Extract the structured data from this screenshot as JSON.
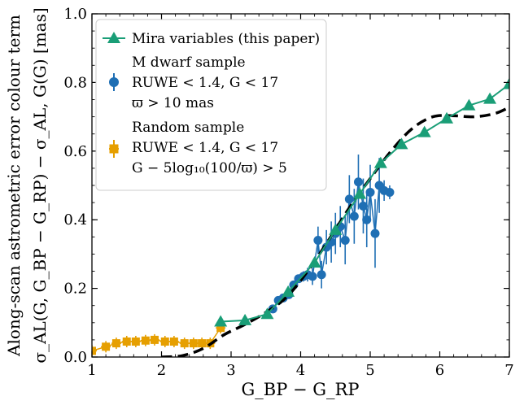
{
  "chart_data": {
    "type": "scatter",
    "xlabel": "G_BP − G_RP",
    "ylabel_line1": "Along-scan astrometric error colour term",
    "ylabel_line2": "σ_AL(G, G_BP − G_RP) − σ_AL, G(G) [mas]",
    "xlim": [
      1,
      7
    ],
    "ylim": [
      0,
      1.0
    ],
    "x_ticks": [
      "1",
      "2",
      "3",
      "4",
      "5",
      "6",
      "7"
    ],
    "y_ticks": [
      "0.0",
      "0.2",
      "0.4",
      "0.6",
      "0.8",
      "1.0"
    ],
    "x_tick_values": [
      1,
      2,
      3,
      4,
      5,
      6,
      7
    ],
    "y_tick_values": [
      0.0,
      0.2,
      0.4,
      0.6,
      0.8,
      1.0
    ],
    "grid": false,
    "legend_position": "top-left",
    "legend": {
      "mira": "Mira variables (this paper)",
      "mdwarf_1": "M dwarf sample",
      "mdwarf_2": "RUWE < 1.4, G < 17",
      "mdwarf_3": "ϖ > 10 mas",
      "random_1": "Random sample",
      "random_2": "RUWE < 1.4, G < 17",
      "random_3": "G − 5log₁₀(100/ϖ) > 5"
    },
    "colors": {
      "mira": "#1a9e77",
      "mdwarf": "#1f6fb4",
      "random": "#e69f00",
      "model": "#000000"
    },
    "series": [
      {
        "name": "Mira variables (this paper)",
        "marker": "triangle",
        "points": [
          [
            2.85,
            0.103
          ],
          [
            3.2,
            0.107
          ],
          [
            3.52,
            0.125
          ],
          [
            3.82,
            0.19
          ],
          [
            4.2,
            0.275
          ],
          [
            4.5,
            0.37
          ],
          [
            4.85,
            0.475
          ],
          [
            5.15,
            0.565
          ],
          [
            5.45,
            0.62
          ],
          [
            5.78,
            0.655
          ],
          [
            6.1,
            0.695
          ],
          [
            6.42,
            0.733
          ],
          [
            6.72,
            0.752
          ],
          [
            7.0,
            0.795
          ]
        ]
      },
      {
        "name": "M dwarf sample",
        "marker": "circle",
        "points": [
          [
            3.6,
            0.14,
            0.008
          ],
          [
            3.68,
            0.165,
            0.01
          ],
          [
            3.75,
            0.172,
            0.01
          ],
          [
            3.83,
            0.182,
            0.01
          ],
          [
            3.9,
            0.21,
            0.012
          ],
          [
            3.97,
            0.228,
            0.012
          ],
          [
            4.04,
            0.235,
            0.015
          ],
          [
            4.1,
            0.24,
            0.02
          ],
          [
            4.17,
            0.235,
            0.025
          ],
          [
            4.25,
            0.34,
            0.04
          ],
          [
            4.3,
            0.24,
            0.04
          ],
          [
            4.37,
            0.32,
            0.05
          ],
          [
            4.44,
            0.335,
            0.06
          ],
          [
            4.5,
            0.36,
            0.06
          ],
          [
            4.57,
            0.38,
            0.06
          ],
          [
            4.64,
            0.34,
            0.07
          ],
          [
            4.7,
            0.46,
            0.07
          ],
          [
            4.77,
            0.41,
            0.08
          ],
          [
            4.83,
            0.51,
            0.08
          ],
          [
            4.9,
            0.44,
            0.08
          ],
          [
            4.95,
            0.4,
            0.08
          ],
          [
            5.0,
            0.48,
            0.08
          ],
          [
            5.07,
            0.36,
            0.1
          ],
          [
            5.13,
            0.5,
            0.08
          ],
          [
            5.2,
            0.485,
            0.03
          ],
          [
            5.28,
            0.48,
            0.02
          ]
        ]
      },
      {
        "name": "Random sample",
        "marker": "square",
        "points": [
          [
            1.0,
            0.018
          ],
          [
            1.2,
            0.03
          ],
          [
            1.35,
            0.04
          ],
          [
            1.5,
            0.045
          ],
          [
            1.63,
            0.045
          ],
          [
            1.77,
            0.048
          ],
          [
            1.9,
            0.05
          ],
          [
            2.05,
            0.045
          ],
          [
            2.18,
            0.045
          ],
          [
            2.33,
            0.04
          ],
          [
            2.46,
            0.04
          ],
          [
            2.58,
            0.04
          ],
          [
            2.7,
            0.04
          ],
          [
            2.85,
            0.085
          ]
        ]
      }
    ],
    "model_curve": {
      "name": "",
      "style": "dashed",
      "points": [
        [
          2.0,
          0.0
        ],
        [
          2.3,
          0.004
        ],
        [
          2.6,
          0.025
        ],
        [
          2.9,
          0.065
        ],
        [
          3.2,
          0.095
        ],
        [
          3.5,
          0.13
        ],
        [
          3.8,
          0.175
        ],
        [
          4.1,
          0.25
        ],
        [
          4.4,
          0.34
        ],
        [
          4.7,
          0.435
        ],
        [
          5.0,
          0.52
        ],
        [
          5.3,
          0.6
        ],
        [
          5.6,
          0.665
        ],
        [
          5.9,
          0.7
        ],
        [
          6.2,
          0.703
        ],
        [
          6.5,
          0.7
        ],
        [
          6.8,
          0.71
        ],
        [
          7.0,
          0.728
        ]
      ]
    }
  }
}
